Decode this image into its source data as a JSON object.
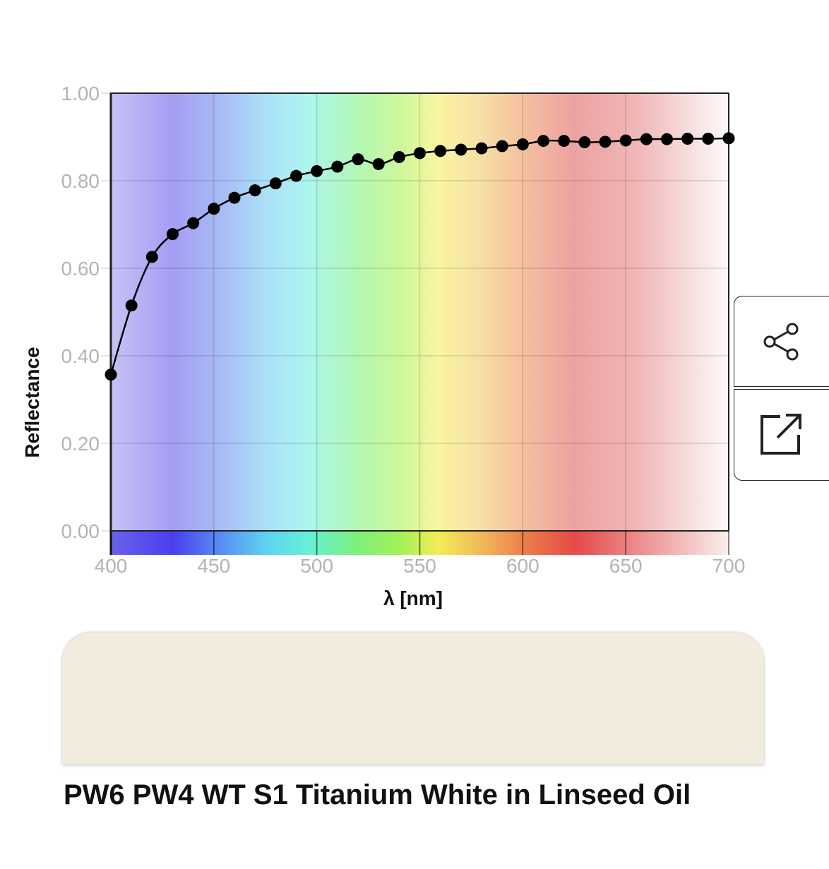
{
  "paint": {
    "name": "PW6 PW4 WT S1 Titanium White in Linseed Oil",
    "swatch_color": "#f1ecdd"
  },
  "actions": {
    "share_icon": "share-icon",
    "open_icon": "open-external-icon"
  },
  "chart_data": {
    "type": "line",
    "xlabel": "λ [nm]",
    "ylabel": "Reflectance",
    "xlim": [
      400,
      700
    ],
    "ylim": [
      0,
      1
    ],
    "x_ticks": [
      "400",
      "450",
      "500",
      "550",
      "600",
      "650",
      "700"
    ],
    "y_ticks": [
      "0.00",
      "0.20",
      "0.40",
      "0.60",
      "0.80",
      "1.00"
    ],
    "grid": true,
    "background": "visible spectrum gradient",
    "series": [
      {
        "x": [
          400,
          410,
          420,
          430,
          440,
          450,
          460,
          470,
          480,
          490,
          500,
          510,
          520,
          530,
          540,
          550,
          560,
          570,
          580,
          590,
          600,
          610,
          620,
          630,
          640,
          650,
          660,
          670,
          680,
          690,
          700
        ],
        "values": [
          0.357,
          0.515,
          0.626,
          0.678,
          0.703,
          0.736,
          0.761,
          0.778,
          0.794,
          0.811,
          0.822,
          0.832,
          0.849,
          0.838,
          0.854,
          0.863,
          0.868,
          0.871,
          0.874,
          0.879,
          0.883,
          0.891,
          0.891,
          0.888,
          0.889,
          0.892,
          0.895,
          0.895,
          0.896,
          0.896,
          0.897
        ]
      }
    ]
  }
}
